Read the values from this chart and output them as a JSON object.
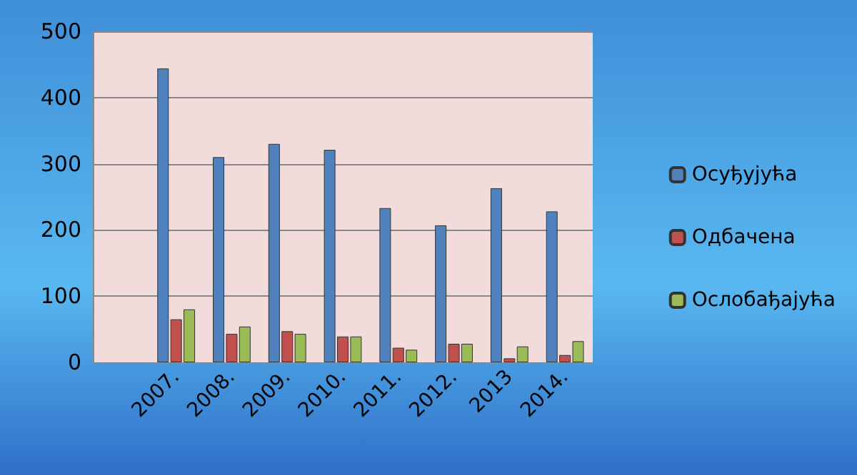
{
  "chart_data": {
    "type": "bar",
    "categories": [
      null,
      "2007.",
      "2008.",
      "2009.",
      "2010.",
      "2011.",
      "2012.",
      "2013",
      "2014."
    ],
    "series": [
      {
        "name": "Осуђујућа",
        "color": "#4f81bd",
        "values": [
          null,
          444,
          310,
          330,
          321,
          233,
          207,
          263,
          228
        ]
      },
      {
        "name": "Одбачена",
        "color": "#c0504d",
        "values": [
          null,
          65,
          43,
          47,
          39,
          22,
          28,
          6,
          11
        ]
      },
      {
        "name": "Ослобађајућа",
        "color": "#9bbb59",
        "values": [
          null,
          80,
          54,
          43,
          39,
          19,
          28,
          24,
          32
        ]
      }
    ],
    "ylim": [
      0,
      500
    ],
    "yticks": [
      0,
      100,
      200,
      300,
      400,
      500
    ],
    "grid": "y",
    "legend": "right"
  }
}
